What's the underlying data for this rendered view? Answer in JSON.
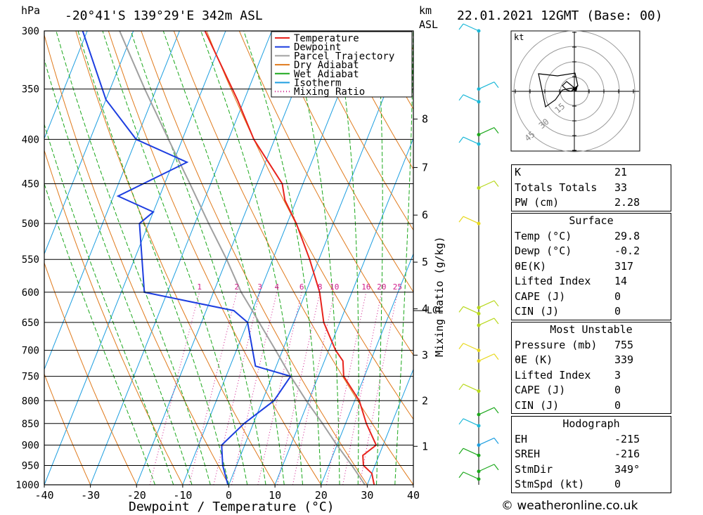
{
  "header": {
    "hpa_label": "hPa",
    "location": "-20°41'S  139°29'E  342m  ASL",
    "km_label": "km",
    "asl_label": "ASL",
    "datetime": "22.01.2021  12GMT  (Base: 00)"
  },
  "legend": {
    "items": [
      {
        "label": "Temperature",
        "color": "#e8231c",
        "style": "solid"
      },
      {
        "label": "Dewpoint",
        "color": "#1d3ee0",
        "style": "solid"
      },
      {
        "label": "Parcel Trajectory",
        "color": "#a0a0a0",
        "style": "solid"
      },
      {
        "label": "Dry Adiabat",
        "color": "#e07a1c",
        "style": "solid"
      },
      {
        "label": "Wet Adiabat",
        "color": "#1ca81c",
        "style": "solid"
      },
      {
        "label": "Isotherm",
        "color": "#1c9ee0",
        "style": "solid"
      },
      {
        "label": "Mixing Ratio",
        "color": "#d01c8b",
        "style": "dotted"
      }
    ]
  },
  "chart_data": {
    "type": "skew-t",
    "xlabel": "Dewpoint / Temperature (°C)",
    "x_ticks": [
      -40,
      -30,
      -20,
      -10,
      0,
      10,
      20,
      30,
      40
    ],
    "xlim": [
      -40,
      40
    ],
    "pressure_levels": [
      300,
      350,
      400,
      450,
      500,
      550,
      600,
      650,
      700,
      750,
      800,
      850,
      900,
      950,
      1000
    ],
    "ylim": [
      1000,
      300
    ],
    "km_ticks": [
      {
        "km": 1,
        "p": 903
      },
      {
        "km": 2,
        "p": 800
      },
      {
        "km": 3,
        "p": 709
      },
      {
        "km": 4,
        "p": 627
      },
      {
        "km": 5,
        "p": 554
      },
      {
        "km": 6,
        "p": 489
      },
      {
        "km": 7,
        "p": 431
      },
      {
        "km": 8,
        "p": 379
      }
    ],
    "lcl_label": "LCL",
    "lcl_pressure": 630,
    "mixing_ratio_label": "Mixing Ratio (g/kg)",
    "mixing_ratio_values": [
      1,
      2,
      3,
      4,
      6,
      8,
      10,
      16,
      20,
      25
    ],
    "temperature": [
      {
        "p": 1000,
        "t": 31.5
      },
      {
        "p": 970,
        "t": 30.0
      },
      {
        "p": 950,
        "t": 27.5
      },
      {
        "p": 925,
        "t": 26.5
      },
      {
        "p": 900,
        "t": 28.5
      },
      {
        "p": 850,
        "t": 24.5
      },
      {
        "p": 800,
        "t": 21.0
      },
      {
        "p": 750,
        "t": 15.5
      },
      {
        "p": 720,
        "t": 14.0
      },
      {
        "p": 700,
        "t": 11.5
      },
      {
        "p": 650,
        "t": 6.5
      },
      {
        "p": 600,
        "t": 3.0
      },
      {
        "p": 550,
        "t": -2.0
      },
      {
        "p": 500,
        "t": -8.0
      },
      {
        "p": 470,
        "t": -12.5
      },
      {
        "p": 450,
        "t": -14.5
      },
      {
        "p": 400,
        "t": -24.5
      },
      {
        "p": 360,
        "t": -31.5
      },
      {
        "p": 300,
        "t": -44.5
      }
    ],
    "dewpoint": [
      {
        "p": 1000,
        "t": -0.2
      },
      {
        "p": 950,
        "t": -3.0
      },
      {
        "p": 900,
        "t": -5.0
      },
      {
        "p": 850,
        "t": -2.0
      },
      {
        "p": 800,
        "t": 2.5
      },
      {
        "p": 750,
        "t": 4.0
      },
      {
        "p": 730,
        "t": -4.5
      },
      {
        "p": 700,
        "t": -6.5
      },
      {
        "p": 650,
        "t": -10.0
      },
      {
        "p": 630,
        "t": -14.0
      },
      {
        "p": 600,
        "t": -35.0
      },
      {
        "p": 500,
        "t": -42.0
      },
      {
        "p": 485,
        "t": -40.0
      },
      {
        "p": 465,
        "t": -49.0
      },
      {
        "p": 425,
        "t": -37.0
      },
      {
        "p": 400,
        "t": -50.0
      },
      {
        "p": 360,
        "t": -60.0
      },
      {
        "p": 300,
        "t": -71.0
      }
    ],
    "parcel": [
      {
        "p": 1000,
        "t": 29.5
      },
      {
        "p": 950,
        "t": 25.0
      },
      {
        "p": 900,
        "t": 20.0
      },
      {
        "p": 850,
        "t": 15.0
      },
      {
        "p": 800,
        "t": 9.5
      },
      {
        "p": 750,
        "t": 4.0
      },
      {
        "p": 700,
        "t": -1.5
      },
      {
        "p": 650,
        "t": -7.5
      },
      {
        "p": 630,
        "t": -10.0
      },
      {
        "p": 600,
        "t": -14.0
      },
      {
        "p": 550,
        "t": -20.0
      },
      {
        "p": 500,
        "t": -27.0
      },
      {
        "p": 450,
        "t": -34.5
      },
      {
        "p": 400,
        "t": -43.0
      },
      {
        "p": 350,
        "t": -52.5
      },
      {
        "p": 300,
        "t": -63.0
      }
    ]
  },
  "wind_profile": {
    "levels": [
      {
        "p": 300,
        "color": "#1cb8d8"
      },
      {
        "p": 350,
        "color": "#1cb8d8"
      },
      {
        "p": 362,
        "color": "#1cb8d8"
      },
      {
        "p": 395,
        "color": "#1ca81c"
      },
      {
        "p": 405,
        "color": "#1cb8d8"
      },
      {
        "p": 455,
        "color": "#b8d81c"
      },
      {
        "p": 500,
        "color": "#e8d81c"
      },
      {
        "p": 625,
        "color": "#b8d81c"
      },
      {
        "p": 635,
        "color": "#b8d81c"
      },
      {
        "p": 655,
        "color": "#b8d81c"
      },
      {
        "p": 700,
        "color": "#e8d81c"
      },
      {
        "p": 720,
        "color": "#e8d81c"
      },
      {
        "p": 780,
        "color": "#b8d81c"
      },
      {
        "p": 830,
        "color": "#1ca81c"
      },
      {
        "p": 855,
        "color": "#1cb8d8"
      },
      {
        "p": 900,
        "color": "#1c9ee0"
      },
      {
        "p": 925,
        "color": "#1ca81c"
      },
      {
        "p": 965,
        "color": "#1ca81c"
      },
      {
        "p": 985,
        "color": "#1ca81c"
      }
    ]
  },
  "hodograph": {
    "unit_label": "kt",
    "ring_labels": [
      "15",
      "30",
      "45"
    ]
  },
  "indices": {
    "rows": [
      {
        "label": "K",
        "value": "21"
      },
      {
        "label": "Totals Totals",
        "value": "33"
      },
      {
        "label": "PW (cm)",
        "value": "2.28"
      }
    ]
  },
  "surface": {
    "title": "Surface",
    "rows": [
      {
        "label": "Temp (°C)",
        "value": "29.8"
      },
      {
        "label": "Dewp (°C)",
        "value": "-0.2"
      },
      {
        "label": "θE(K)",
        "value": "317"
      },
      {
        "label": "Lifted Index",
        "value": "14"
      },
      {
        "label": "CAPE (J)",
        "value": "0"
      },
      {
        "label": "CIN (J)",
        "value": "0"
      }
    ]
  },
  "most_unstable": {
    "title": "Most Unstable",
    "rows": [
      {
        "label": "Pressure (mb)",
        "value": "755"
      },
      {
        "label": "θE (K)",
        "value": "339"
      },
      {
        "label": "Lifted Index",
        "value": "3"
      },
      {
        "label": "CAPE (J)",
        "value": "0"
      },
      {
        "label": "CIN (J)",
        "value": "0"
      }
    ]
  },
  "hodograph_table": {
    "title": "Hodograph",
    "rows": [
      {
        "label": "EH",
        "value": "-215"
      },
      {
        "label": "SREH",
        "value": "-216"
      },
      {
        "label": "StmDir",
        "value": "349°"
      },
      {
        "label": "StmSpd (kt)",
        "value": "0"
      }
    ]
  },
  "footer": {
    "copyright": "© weatheronline.co.uk"
  }
}
